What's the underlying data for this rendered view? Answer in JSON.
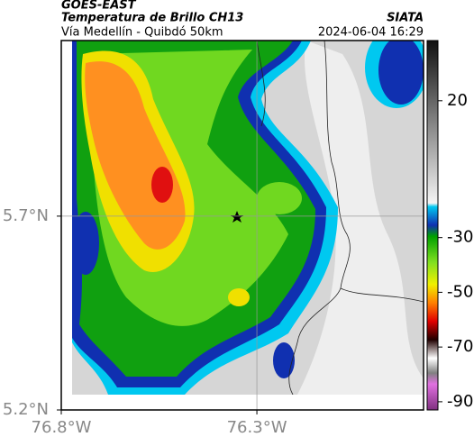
{
  "header": {
    "satellite": "GOES-EAST",
    "product": "Temperatura de Brillo CH13",
    "region": "Vía Medellín - Quibdó 50km",
    "source": "SIATA",
    "datetime": "2024-06-04 16:29"
  },
  "map": {
    "xlim": [
      -76.8,
      -75.874
    ],
    "ylim": [
      5.2,
      6.153
    ],
    "xticks": [
      {
        "value": -76.8,
        "label": "76.8°W"
      },
      {
        "value": -76.3,
        "label": "76.3°W"
      }
    ],
    "yticks": [
      {
        "value": 5.7,
        "label": "5.7°N"
      },
      {
        "value": 5.2,
        "label": "5.2°N"
      }
    ],
    "grid": true
  },
  "colorbar": {
    "lim": [
      -93,
      42
    ],
    "ticks": [
      20,
      -30,
      -50,
      -70,
      -90
    ]
  }
}
